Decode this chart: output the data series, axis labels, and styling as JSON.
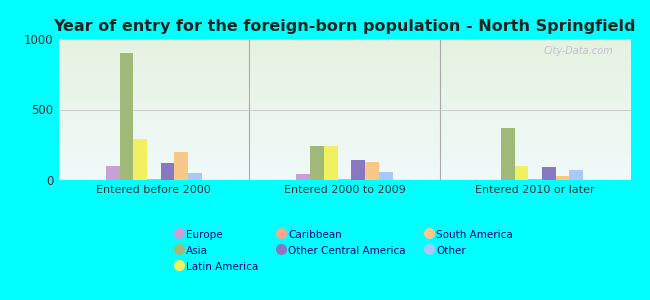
{
  "title": "Year of entry for the foreign-born population - North Springfield",
  "groups": [
    "Entered before 2000",
    "Entered 2000 to 2009",
    "Entered 2010 or later"
  ],
  "series": [
    {
      "label": "Europe",
      "color": "#c8a0d8",
      "values": [
        100,
        40,
        0
      ]
    },
    {
      "label": "Asia",
      "color": "#a0b878",
      "values": [
        900,
        240,
        370
      ]
    },
    {
      "label": "Latin America",
      "color": "#f0f060",
      "values": [
        290,
        240,
        100
      ]
    },
    {
      "label": "Caribbean",
      "color": "#f8a888",
      "values": [
        5,
        5,
        5
      ]
    },
    {
      "label": "Other Central America",
      "color": "#8878c0",
      "values": [
        120,
        140,
        90
      ]
    },
    {
      "label": "South America",
      "color": "#f8c888",
      "values": [
        200,
        130,
        30
      ]
    },
    {
      "label": "Other",
      "color": "#a8c8f8",
      "values": [
        50,
        60,
        70
      ]
    }
  ],
  "ylim": [
    0,
    1000
  ],
  "yticks": [
    0,
    500,
    1000
  ],
  "background_color": "#00ffff",
  "title_fontsize": 11.5,
  "watermark": "City-Data.com",
  "legend_layout": [
    [
      "Europe",
      "Asia",
      "Latin America"
    ],
    [
      "Caribbean",
      "Other Central America",
      "South America"
    ],
    [
      "Other",
      null,
      null
    ]
  ]
}
